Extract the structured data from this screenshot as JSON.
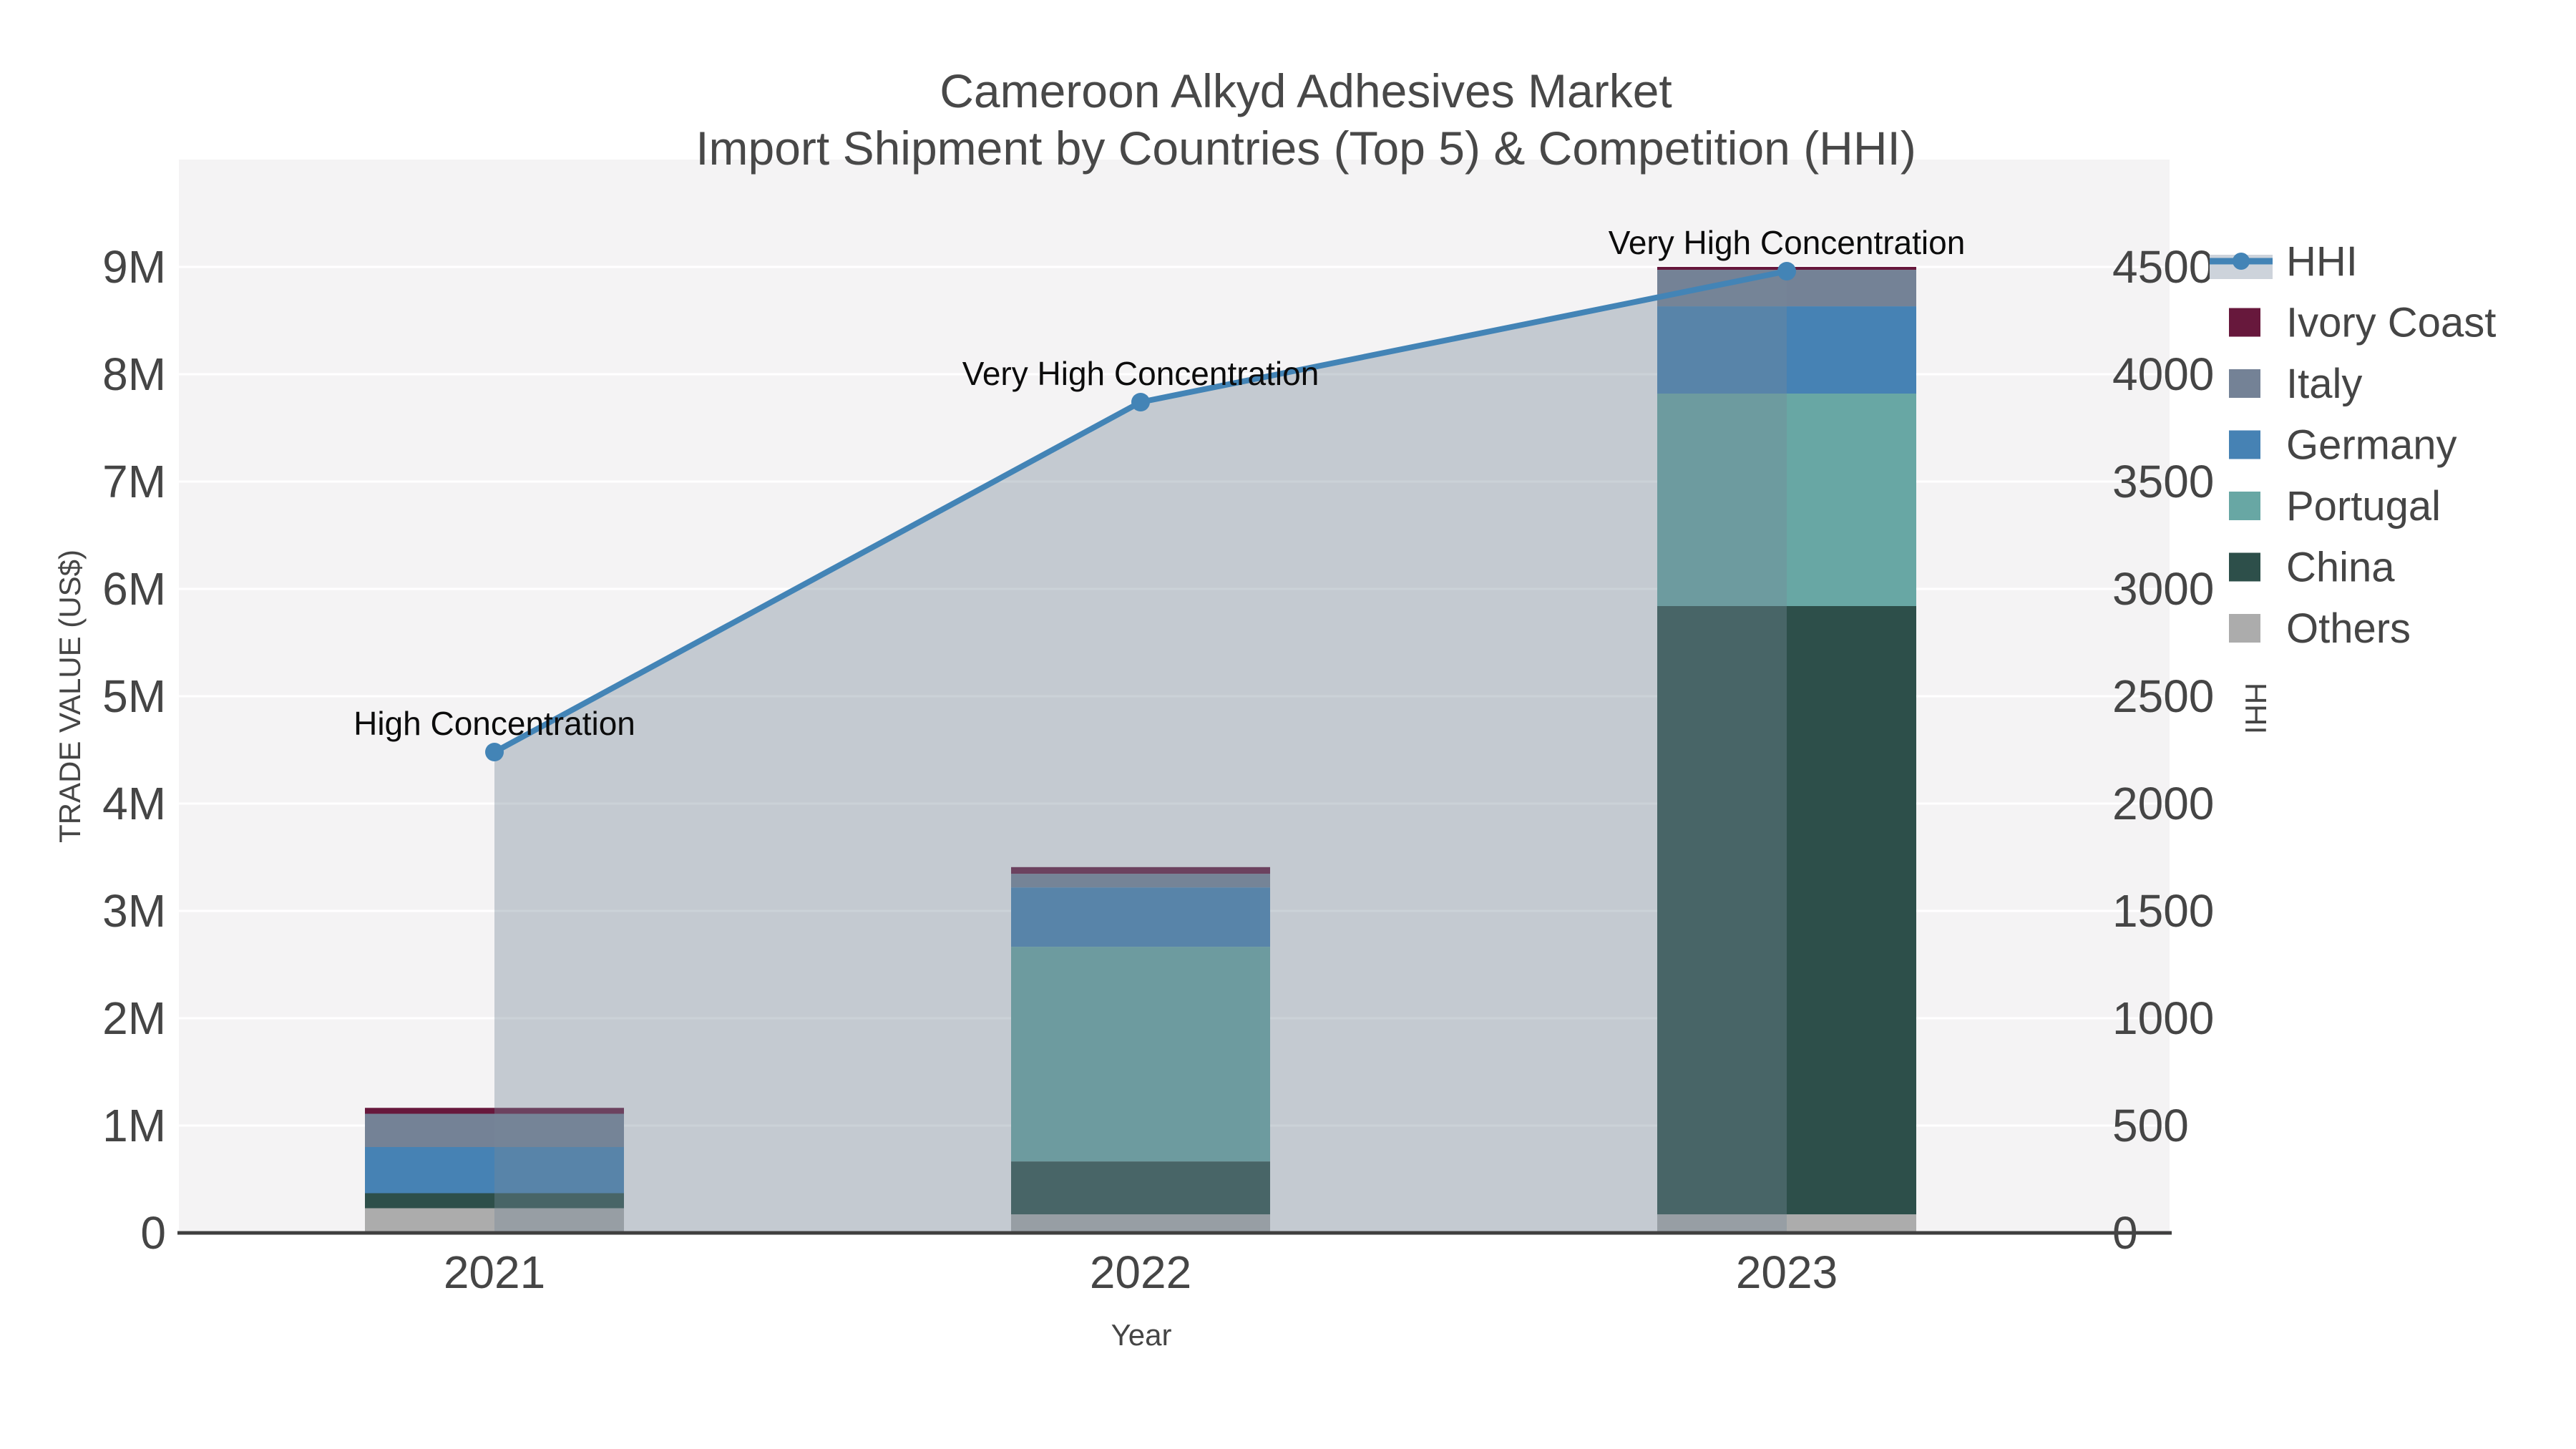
{
  "chart_data": {
    "type": "bar",
    "stacked": true,
    "title": "Cameroon Alkyd Adhesives Market",
    "subtitle": "Import Shipment by Countries (Top 5) & Competition (HHI)",
    "xlabel": "Year",
    "ylabel_left": "TRADE VALUE (US$)",
    "ylabel_right": "HHI",
    "categories": [
      "2021",
      "2022",
      "2023"
    ],
    "series": [
      {
        "name": "Others",
        "color": "#acacac",
        "values": [
          230000,
          173000,
          173000
        ]
      },
      {
        "name": "China",
        "color": "#2d4f4a",
        "values": [
          140000,
          493000,
          5667000
        ]
      },
      {
        "name": "Portugal",
        "color": "#68a7a4",
        "values": [
          0,
          2000000,
          1980000
        ]
      },
      {
        "name": "Germany",
        "color": "#4682b4",
        "values": [
          430000,
          553000,
          813000
        ]
      },
      {
        "name": "Italy",
        "color": "#748296",
        "values": [
          310000,
          127000,
          340000
        ]
      },
      {
        "name": "Ivory Coast",
        "color": "#67183c",
        "values": [
          55000,
          62000,
          27000
        ]
      }
    ],
    "line_series": {
      "name": "HHI",
      "color": "#4384b6",
      "area_fill": "rgba(119,136,153,0.38)",
      "values": [
        2240,
        3870,
        4480
      ]
    },
    "annotations": [
      "High Concentration",
      "Very High Concentration",
      "Very High Concentration"
    ],
    "y_left": {
      "min": 0,
      "max": 10000000,
      "tick_values": [
        0,
        1000000,
        2000000,
        3000000,
        4000000,
        5000000,
        6000000,
        7000000,
        8000000,
        9000000
      ],
      "ticks": [
        "0",
        "1M",
        "2M",
        "3M",
        "4M",
        "5M",
        "6M",
        "7M",
        "8M",
        "9M"
      ]
    },
    "y_right": {
      "min": 0,
      "max": 5000,
      "tick_values": [
        0,
        500,
        1000,
        1500,
        2000,
        2500,
        3000,
        3500,
        4000,
        4500
      ],
      "ticks": [
        "0",
        "500",
        "1000",
        "1500",
        "2000",
        "2500",
        "3000",
        "3500",
        "4000",
        "4500"
      ]
    },
    "legend_order": [
      "HHI",
      "Ivory Coast",
      "Italy",
      "Germany",
      "Portugal",
      "China",
      "Others"
    ],
    "legend_position": "right",
    "grid": true,
    "plot_bg": "#f4f3f4",
    "grid_color": "#ffffff",
    "axis_line_color": "#3f3f3f",
    "legend_hhi_band_color": "#cdd3db"
  }
}
